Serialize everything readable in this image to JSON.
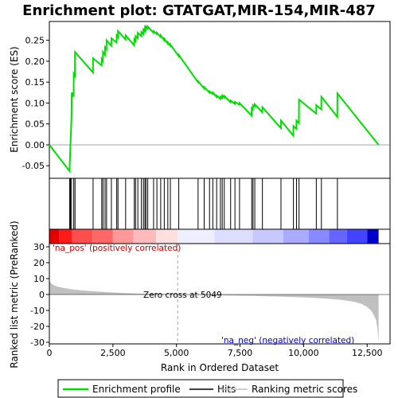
{
  "chart_data": {
    "type": "line",
    "title": "Enrichment plot: GTATGAT,MIR-154,MIR-487",
    "xlabel": "Rank in Ordered Dataset",
    "ylabel_top": "Enrichment score (ES)",
    "ylabel_bottom": "Ranked list metric (PreRanked)",
    "x_range": [
      0,
      13400
    ],
    "top_ylim": [
      -0.08,
      0.295
    ],
    "bottom_ylim": [
      -31,
      32
    ],
    "x_ticks": [
      0,
      2500,
      5000,
      7500,
      10000,
      12500
    ],
    "x_tick_labels": [
      "0",
      "2,500",
      "5,000",
      "7,500",
      "10,000",
      "12,500"
    ],
    "top_y_ticks": [
      -0.05,
      0.0,
      0.05,
      0.1,
      0.15,
      0.2,
      0.25
    ],
    "top_y_tick_labels": [
      "-0.05",
      "0.00",
      "0.05",
      "0.10",
      "0.15",
      "0.20",
      "0.25"
    ],
    "bottom_y_ticks": [
      -30,
      -20,
      -10,
      0,
      10,
      20,
      30
    ],
    "bottom_y_tick_labels": [
      "-30",
      "-20",
      "-10",
      "0",
      "10",
      "20",
      "30"
    ],
    "zero_cross_rank": 5049,
    "annotations": {
      "zero_cross": "Zero cross at 5049",
      "pos_label": "'na_pos' (positively correlated)",
      "neg_label": "'na_neg' (negatively correlated)"
    },
    "legend": {
      "placement": "bottom",
      "items": [
        "Enrichment profile",
        "Hits",
        "Ranking metric scores"
      ]
    },
    "colors": {
      "enrichment_line": "#00dd00",
      "hits": "#000000",
      "metric_fill": "#c0c0c0",
      "pos_label": "#cc0000",
      "neg_label": "#0000cc",
      "zero_line": "#aaaaaa"
    },
    "hits": [
      800,
      830,
      870,
      960,
      1010,
      1720,
      2060,
      2110,
      2190,
      2250,
      2440,
      2650,
      2700,
      3000,
      3340,
      3390,
      3480,
      3620,
      3700,
      3760,
      3800,
      3870,
      4100,
      4230,
      4380,
      4520,
      4660,
      4760,
      5090,
      5850,
      6090,
      6300,
      6430,
      6580,
      6730,
      6800,
      6880,
      7130,
      7300,
      7480,
      7960,
      8010,
      8080,
      8380,
      9110,
      9600,
      9720,
      9820,
      10500,
      10700,
      11330
    ],
    "es_profile": [
      [
        0,
        0.0
      ],
      [
        799,
        -0.063
      ],
      [
        800,
        -0.05
      ],
      [
        830,
        0.0
      ],
      [
        870,
        0.065
      ],
      [
        880,
        0.125
      ],
      [
        955,
        0.115
      ],
      [
        960,
        0.17
      ],
      [
        1005,
        0.165
      ],
      [
        1010,
        0.222
      ],
      [
        1715,
        0.173
      ],
      [
        1720,
        0.207
      ],
      [
        2055,
        0.19
      ],
      [
        2060,
        0.205
      ],
      [
        2105,
        0.2
      ],
      [
        2110,
        0.222
      ],
      [
        2185,
        0.215
      ],
      [
        2190,
        0.233
      ],
      [
        2245,
        0.228
      ],
      [
        2250,
        0.25
      ],
      [
        2435,
        0.237
      ],
      [
        2440,
        0.255
      ],
      [
        2645,
        0.245
      ],
      [
        2650,
        0.262
      ],
      [
        2695,
        0.258
      ],
      [
        2700,
        0.272
      ],
      [
        2995,
        0.252
      ],
      [
        3000,
        0.262
      ],
      [
        3335,
        0.238
      ],
      [
        3340,
        0.252
      ],
      [
        3385,
        0.248
      ],
      [
        3390,
        0.26
      ],
      [
        3475,
        0.255
      ],
      [
        3480,
        0.268
      ],
      [
        3615,
        0.26
      ],
      [
        3620,
        0.27
      ],
      [
        3695,
        0.265
      ],
      [
        3700,
        0.276
      ],
      [
        3755,
        0.272
      ],
      [
        3760,
        0.28
      ],
      [
        3795,
        0.276
      ],
      [
        3800,
        0.283
      ],
      [
        3865,
        0.278
      ],
      [
        3870,
        0.283
      ],
      [
        4095,
        0.268
      ],
      [
        4100,
        0.272
      ],
      [
        4225,
        0.265
      ],
      [
        4230,
        0.268
      ],
      [
        4375,
        0.258
      ],
      [
        4380,
        0.262
      ],
      [
        4515,
        0.25
      ],
      [
        4520,
        0.254
      ],
      [
        4655,
        0.242
      ],
      [
        4660,
        0.245
      ],
      [
        4755,
        0.237
      ],
      [
        4760,
        0.24
      ],
      [
        5085,
        0.212
      ],
      [
        5090,
        0.215
      ],
      [
        5845,
        0.15
      ],
      [
        5850,
        0.152
      ],
      [
        6085,
        0.135
      ],
      [
        6090,
        0.138
      ],
      [
        6295,
        0.125
      ],
      [
        6300,
        0.128
      ],
      [
        6425,
        0.122
      ],
      [
        6430,
        0.125
      ],
      [
        6575,
        0.115
      ],
      [
        6580,
        0.118
      ],
      [
        6725,
        0.11
      ],
      [
        6730,
        0.115
      ],
      [
        6795,
        0.112
      ],
      [
        6800,
        0.118
      ],
      [
        6875,
        0.113
      ],
      [
        6880,
        0.117
      ],
      [
        7125,
        0.102
      ],
      [
        7130,
        0.106
      ],
      [
        7295,
        0.098
      ],
      [
        7300,
        0.103
      ],
      [
        7475,
        0.096
      ],
      [
        7480,
        0.1
      ],
      [
        7955,
        0.07
      ],
      [
        7960,
        0.088
      ],
      [
        8005,
        0.085
      ],
      [
        8010,
        0.095
      ],
      [
        8075,
        0.092
      ],
      [
        8080,
        0.097
      ],
      [
        8375,
        0.078
      ],
      [
        8380,
        0.09
      ],
      [
        9105,
        0.04
      ],
      [
        9110,
        0.058
      ],
      [
        9595,
        0.022
      ],
      [
        9600,
        0.045
      ],
      [
        9715,
        0.038
      ],
      [
        9720,
        0.058
      ],
      [
        9815,
        0.052
      ],
      [
        9820,
        0.108
      ],
      [
        10495,
        0.075
      ],
      [
        10500,
        0.095
      ],
      [
        10695,
        0.085
      ],
      [
        10700,
        0.115
      ],
      [
        11325,
        0.067
      ],
      [
        11330,
        0.123
      ],
      [
        12950,
        0.0
      ]
    ],
    "metric_curve": [
      [
        0,
        8.8
      ],
      [
        100,
        6.5
      ],
      [
        300,
        5.0
      ],
      [
        600,
        4.0
      ],
      [
        1000,
        3.0
      ],
      [
        1500,
        2.3
      ],
      [
        2000,
        1.8
      ],
      [
        2500,
        1.3
      ],
      [
        3000,
        0.9
      ],
      [
        3500,
        0.6
      ],
      [
        4000,
        0.4
      ],
      [
        4500,
        0.2
      ],
      [
        5049,
        0.0
      ],
      [
        6000,
        -0.3
      ],
      [
        7000,
        -0.6
      ],
      [
        8000,
        -0.9
      ],
      [
        9000,
        -1.3
      ],
      [
        10000,
        -1.8
      ],
      [
        10500,
        -2.2
      ],
      [
        11000,
        -2.7
      ],
      [
        11500,
        -3.4
      ],
      [
        12000,
        -4.6
      ],
      [
        12300,
        -6.0
      ],
      [
        12500,
        -7.8
      ],
      [
        12650,
        -10.0
      ],
      [
        12750,
        -12.5
      ],
      [
        12850,
        -16.0
      ],
      [
        12900,
        -21.0
      ],
      [
        12950,
        -30.0
      ]
    ],
    "heatmap_segments": [
      [
        0,
        400,
        "#e60000"
      ],
      [
        400,
        900,
        "#ff1a1a"
      ],
      [
        900,
        1700,
        "#ff4d4d"
      ],
      [
        1700,
        2500,
        "#ff6666"
      ],
      [
        2500,
        3300,
        "#ff9999"
      ],
      [
        3300,
        4200,
        "#ffbbbb"
      ],
      [
        4200,
        5049,
        "#ffdede"
      ],
      [
        5049,
        6500,
        "#eeeeff"
      ],
      [
        6500,
        8000,
        "#ddddff"
      ],
      [
        8000,
        9200,
        "#c8c8ff"
      ],
      [
        9200,
        10200,
        "#aaaaff"
      ],
      [
        10200,
        11000,
        "#8888ff"
      ],
      [
        11000,
        11700,
        "#6666ff"
      ],
      [
        11700,
        12500,
        "#4444ff"
      ],
      [
        12500,
        12950,
        "#0000cc"
      ]
    ]
  }
}
